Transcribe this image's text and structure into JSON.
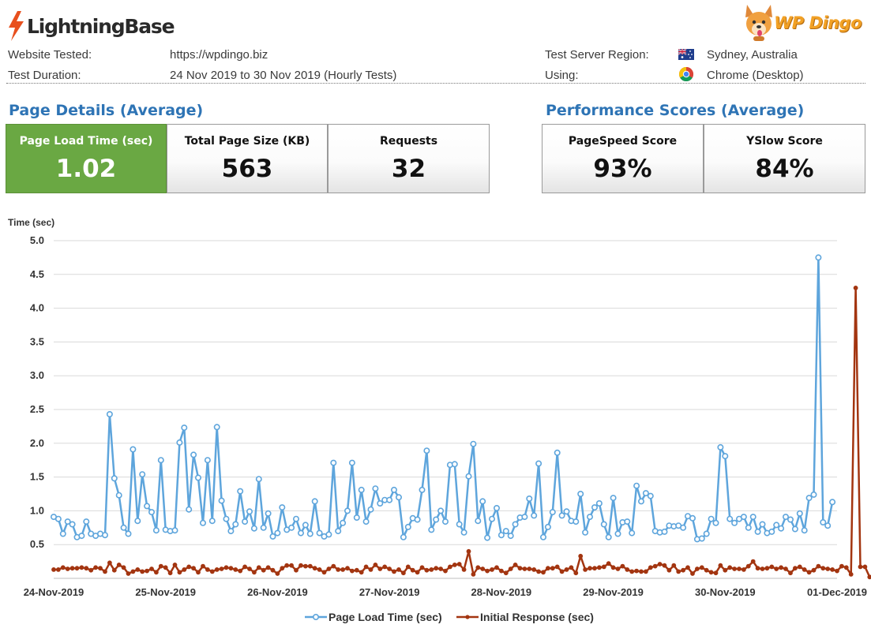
{
  "header": {
    "brand": "LightningBase",
    "partner": "WP Dingo",
    "website_tested_label": "Website Tested:",
    "website_tested_value": "https://wpdingo.biz",
    "test_duration_label": "Test Duration:",
    "test_duration_value": "24 Nov 2019 to 30 Nov 2019 (Hourly Tests)",
    "region_label": "Test Server Region:",
    "region_value": "Sydney, Australia",
    "using_label": "Using:",
    "using_value": "Chrome (Desktop)"
  },
  "page_details": {
    "title": "Page Details (Average)",
    "cards": [
      {
        "label": "Page Load Time (sec)",
        "value": "1.02"
      },
      {
        "label": "Total Page Size (KB)",
        "value": "563"
      },
      {
        "label": "Requests",
        "value": "32"
      }
    ]
  },
  "performance": {
    "title": "Performance Scores (Average)",
    "cards": [
      {
        "label": "PageSpeed Score",
        "value": "93%"
      },
      {
        "label": "YSlow Score",
        "value": "84%"
      }
    ]
  },
  "colors": {
    "green_card": "#6aa843",
    "title_blue": "#2e74b5",
    "series_blue": "#5ea5dc",
    "series_red": "#a33510"
  },
  "chart_data": {
    "type": "line",
    "ylabel": "Time (sec)",
    "ylim": [
      0,
      5.0
    ],
    "yticks": [
      "5.0",
      "4.5",
      "4.0",
      "3.5",
      "3.0",
      "2.5",
      "2.0",
      "1.5",
      "1.0",
      "0.5"
    ],
    "xticks": [
      "24-Nov-2019",
      "25-Nov-2019",
      "26-Nov-2019",
      "27-Nov-2019",
      "28-Nov-2019",
      "29-Nov-2019",
      "30-Nov-2019",
      "01-Dec-2019"
    ],
    "x_unit": "hours since 24-Nov-2019 00:00 (hourly tests)",
    "grid": true,
    "legend": "bottom",
    "series": [
      {
        "name": "Page Load Time (sec)",
        "color": "#5ea5dc",
        "values": [
          0.91,
          0.88,
          0.66,
          0.84,
          0.8,
          0.61,
          0.63,
          0.84,
          0.66,
          0.63,
          0.66,
          0.64,
          2.43,
          1.48,
          1.23,
          0.75,
          0.66,
          1.91,
          0.85,
          1.54,
          1.07,
          0.98,
          0.71,
          1.75,
          0.72,
          0.7,
          0.71,
          2.01,
          2.23,
          1.02,
          1.83,
          1.49,
          0.82,
          1.75,
          0.85,
          2.24,
          1.15,
          0.88,
          0.7,
          0.8,
          1.29,
          0.84,
          0.99,
          0.74,
          1.47,
          0.75,
          0.96,
          0.62,
          0.67,
          1.05,
          0.72,
          0.75,
          0.88,
          0.67,
          0.79,
          0.66,
          1.14,
          0.67,
          0.62,
          0.65,
          1.71,
          0.7,
          0.82,
          1.0,
          1.71,
          0.9,
          1.31,
          0.84,
          1.02,
          1.33,
          1.11,
          1.16,
          1.16,
          1.31,
          1.2,
          0.61,
          0.76,
          0.89,
          0.87,
          1.31,
          1.89,
          0.72,
          0.87,
          1.0,
          0.84,
          1.68,
          1.69,
          0.8,
          0.68,
          1.51,
          1.99,
          0.85,
          1.14,
          0.6,
          0.88,
          1.04,
          0.64,
          0.7,
          0.63,
          0.8,
          0.9,
          0.91,
          1.18,
          0.93,
          1.7,
          0.61,
          0.76,
          0.98,
          1.86,
          0.93,
          0.99,
          0.85,
          0.84,
          1.25,
          0.68,
          0.91,
          1.05,
          1.11,
          0.8,
          0.61,
          1.19,
          0.66,
          0.83,
          0.84,
          0.67,
          1.37,
          1.14,
          1.26,
          1.22,
          0.7,
          0.68,
          0.69,
          0.78,
          0.77,
          0.78,
          0.75,
          0.92,
          0.89,
          0.58,
          0.59,
          0.66,
          0.88,
          0.82,
          1.94,
          1.81,
          0.88,
          0.82,
          0.88,
          0.91,
          0.75,
          0.91,
          0.69,
          0.8,
          0.67,
          0.69,
          0.79,
          0.74,
          0.91,
          0.87,
          0.73,
          0.96,
          0.71,
          1.19,
          1.24,
          4.75,
          0.83,
          0.78,
          1.13
        ]
      },
      {
        "name": "Initial Response (sec)",
        "color": "#a33510",
        "values": [
          0.13,
          0.13,
          0.16,
          0.14,
          0.15,
          0.15,
          0.16,
          0.15,
          0.12,
          0.16,
          0.15,
          0.1,
          0.23,
          0.12,
          0.2,
          0.16,
          0.07,
          0.1,
          0.13,
          0.1,
          0.11,
          0.14,
          0.09,
          0.18,
          0.16,
          0.08,
          0.2,
          0.09,
          0.13,
          0.17,
          0.15,
          0.09,
          0.18,
          0.13,
          0.1,
          0.13,
          0.14,
          0.16,
          0.15,
          0.13,
          0.11,
          0.17,
          0.14,
          0.09,
          0.16,
          0.12,
          0.16,
          0.12,
          0.07,
          0.15,
          0.19,
          0.19,
          0.12,
          0.19,
          0.18,
          0.18,
          0.15,
          0.13,
          0.09,
          0.14,
          0.18,
          0.13,
          0.13,
          0.15,
          0.11,
          0.12,
          0.09,
          0.17,
          0.13,
          0.2,
          0.14,
          0.17,
          0.14,
          0.1,
          0.13,
          0.08,
          0.17,
          0.12,
          0.09,
          0.16,
          0.12,
          0.13,
          0.15,
          0.14,
          0.11,
          0.17,
          0.2,
          0.21,
          0.13,
          0.4,
          0.06,
          0.16,
          0.14,
          0.11,
          0.13,
          0.16,
          0.11,
          0.08,
          0.14,
          0.2,
          0.15,
          0.14,
          0.14,
          0.13,
          0.1,
          0.09,
          0.15,
          0.15,
          0.17,
          0.1,
          0.13,
          0.16,
          0.08,
          0.33,
          0.13,
          0.15,
          0.15,
          0.16,
          0.17,
          0.22,
          0.16,
          0.14,
          0.18,
          0.13,
          0.1,
          0.11,
          0.1,
          0.1,
          0.16,
          0.18,
          0.21,
          0.19,
          0.12,
          0.19,
          0.1,
          0.12,
          0.16,
          0.07,
          0.14,
          0.16,
          0.12,
          0.09,
          0.08,
          0.19,
          0.12,
          0.16,
          0.14,
          0.14,
          0.13,
          0.18,
          0.25,
          0.15,
          0.14,
          0.15,
          0.17,
          0.14,
          0.16,
          0.14,
          0.08,
          0.15,
          0.17,
          0.13,
          0.09,
          0.12,
          0.18,
          0.15,
          0.14,
          0.13,
          0.11,
          0.18,
          0.16,
          0.06,
          4.3,
          0.17,
          0.17,
          0.02
        ]
      }
    ]
  }
}
